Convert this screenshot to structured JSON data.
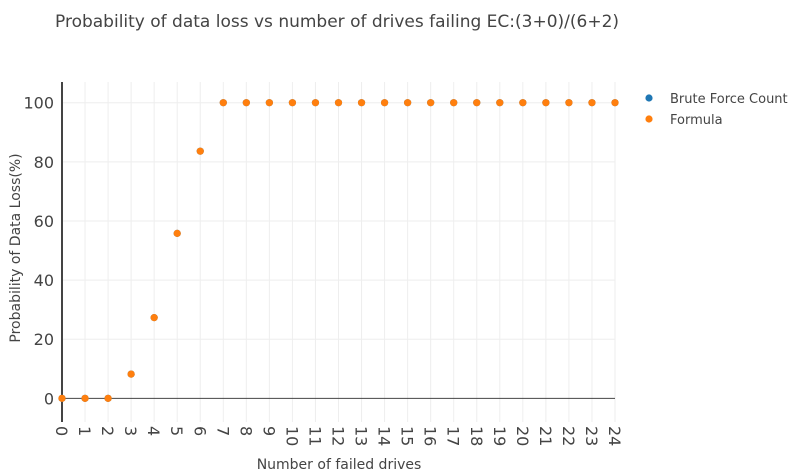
{
  "chart_data": {
    "type": "scatter",
    "title": "Probability of data loss vs number of drives failing EC:(3+0)/(6+2)",
    "xlabel": "Number of failed drives",
    "ylabel": "Probability of Data Loss(%)",
    "x": [
      0,
      1,
      2,
      3,
      4,
      5,
      6,
      7,
      8,
      9,
      10,
      11,
      12,
      13,
      14,
      15,
      16,
      17,
      18,
      19,
      20,
      21,
      22,
      23,
      24
    ],
    "xlim": [
      0,
      24
    ],
    "ylim": [
      -8,
      107
    ],
    "yticks": [
      0,
      20,
      40,
      60,
      80,
      100
    ],
    "grid": true,
    "legend_position": "top-right",
    "series": [
      {
        "name": "Brute Force Count",
        "color": "#1f77b4",
        "values": [
          0,
          0,
          0,
          8.2,
          27.3,
          55.8,
          83.6,
          100,
          100,
          100,
          100,
          100,
          100,
          100,
          100,
          100,
          100,
          100,
          100,
          100,
          100,
          100,
          100,
          100,
          100
        ]
      },
      {
        "name": "Formula",
        "color": "#ff7f0e",
        "values": [
          0,
          0,
          0,
          8.2,
          27.3,
          55.8,
          83.6,
          100,
          100,
          100,
          100,
          100,
          100,
          100,
          100,
          100,
          100,
          100,
          100,
          100,
          100,
          100,
          100,
          100,
          100
        ]
      }
    ]
  }
}
